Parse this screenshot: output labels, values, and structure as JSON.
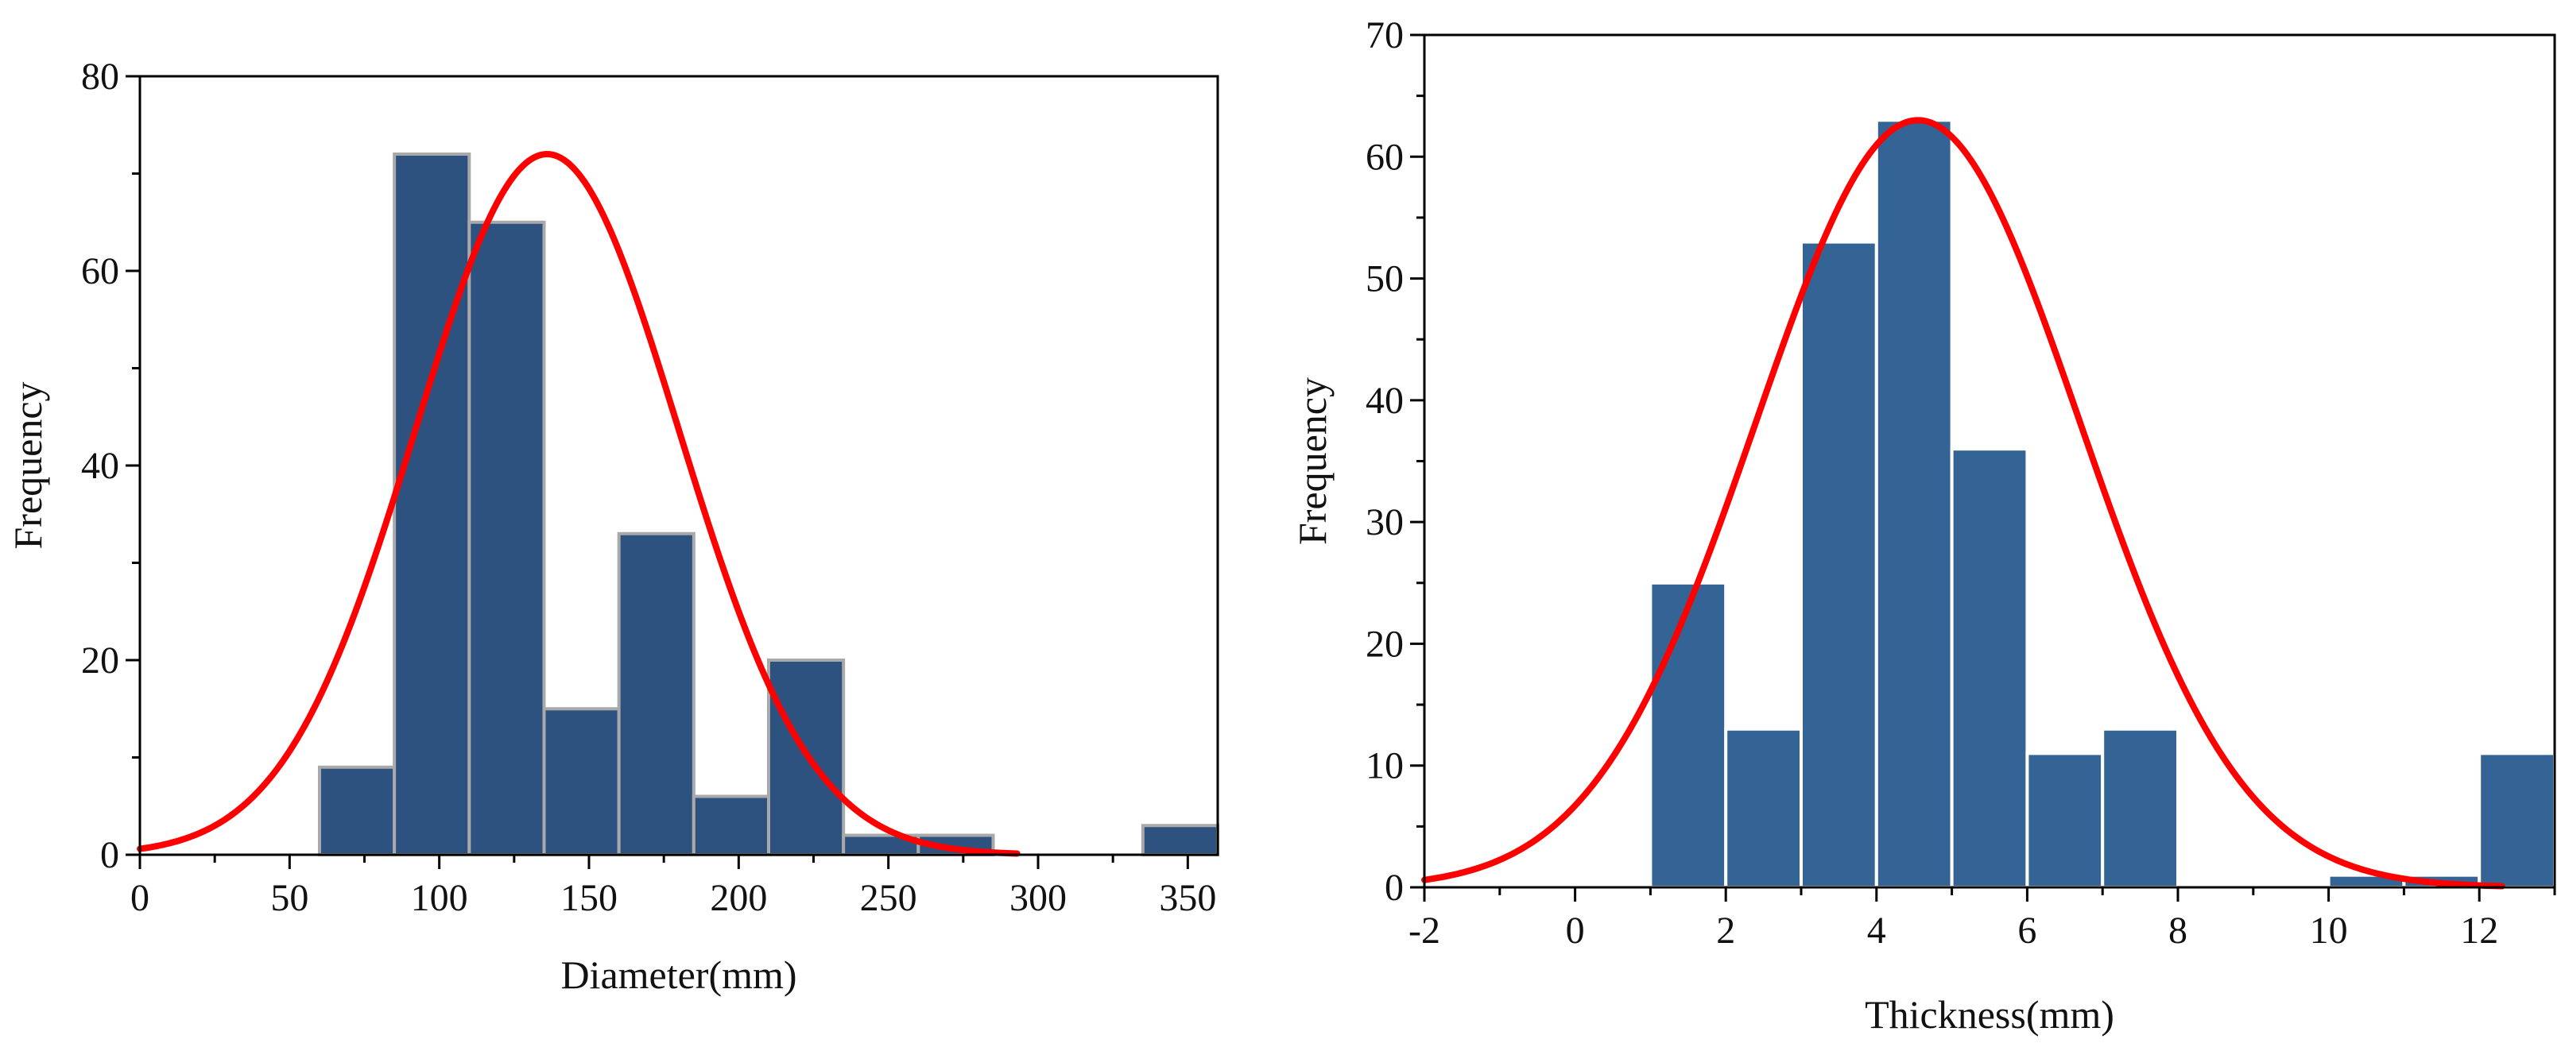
{
  "chart_data": [
    {
      "type": "bar",
      "subtype": "histogram_with_normal_fit",
      "title": "",
      "xlabel": "Diameter(mm)",
      "ylabel": "Frequency",
      "xlim": [
        0,
        360
      ],
      "ylim": [
        0,
        80
      ],
      "xticks": [
        0,
        50,
        100,
        150,
        200,
        250,
        300,
        350
      ],
      "yticks": [
        0,
        20,
        40,
        60,
        80
      ],
      "bins": [
        {
          "start": 60,
          "end": 85,
          "value": 9
        },
        {
          "start": 85,
          "end": 110,
          "value": 72
        },
        {
          "start": 110,
          "end": 135,
          "value": 65
        },
        {
          "start": 135,
          "end": 160,
          "value": 15
        },
        {
          "start": 160,
          "end": 185,
          "value": 33
        },
        {
          "start": 185,
          "end": 210,
          "value": 6
        },
        {
          "start": 210,
          "end": 235,
          "value": 20
        },
        {
          "start": 235,
          "end": 260,
          "value": 2
        },
        {
          "start": 260,
          "end": 285,
          "value": 2
        },
        {
          "start": 335,
          "end": 360,
          "value": 3
        }
      ],
      "fit": {
        "kind": "normal",
        "mean": 136,
        "sd": 44,
        "peak": 72,
        "x_start": 0,
        "x_end": 293
      },
      "colors": {
        "bar": "#2e5280",
        "bar_edge": "#a9a9a9",
        "curve": "#ff0000"
      }
    },
    {
      "type": "bar",
      "subtype": "histogram_with_normal_fit",
      "title": "",
      "xlabel": "Thickness(mm)",
      "ylabel": "Frequency",
      "xlim": [
        -2,
        13
      ],
      "ylim": [
        0,
        70
      ],
      "xticks": [
        -2,
        0,
        2,
        4,
        6,
        8,
        10,
        12
      ],
      "yticks": [
        0,
        10,
        20,
        30,
        40,
        50,
        60,
        70
      ],
      "bins": [
        {
          "start": 1,
          "end": 2,
          "value": 25
        },
        {
          "start": 2,
          "end": 3,
          "value": 13
        },
        {
          "start": 3,
          "end": 4,
          "value": 53
        },
        {
          "start": 4,
          "end": 5,
          "value": 63
        },
        {
          "start": 5,
          "end": 6,
          "value": 36
        },
        {
          "start": 6,
          "end": 7,
          "value": 11
        },
        {
          "start": 7,
          "end": 8,
          "value": 13
        },
        {
          "start": 10,
          "end": 11,
          "value": 1
        },
        {
          "start": 11,
          "end": 12,
          "value": 1
        },
        {
          "start": 12,
          "end": 13,
          "value": 11
        }
      ],
      "fit": {
        "kind": "normal",
        "mean": 4.55,
        "sd": 2.15,
        "peak": 63,
        "x_start": -2,
        "x_end": 12.3
      },
      "colors": {
        "bar": "#336495",
        "bar_edge": "#ffffff",
        "curve": "#ff0000"
      }
    }
  ]
}
